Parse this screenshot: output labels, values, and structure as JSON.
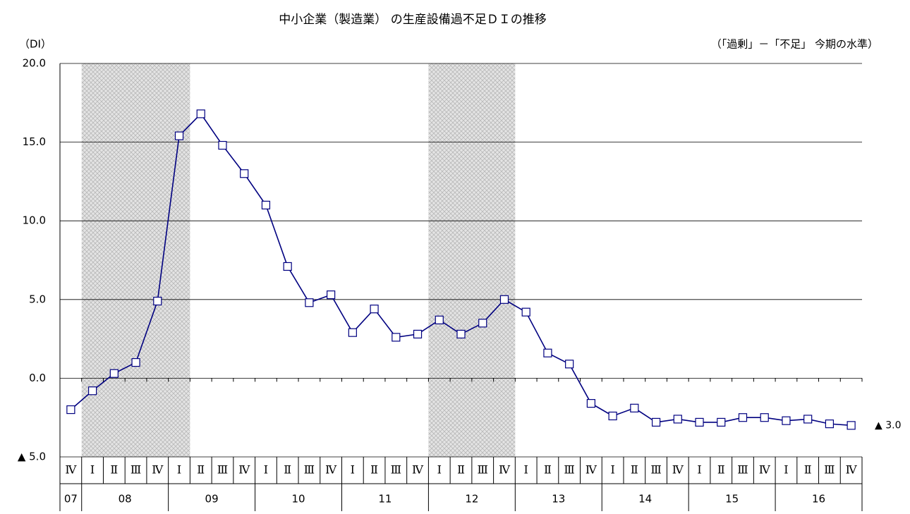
{
  "chart_data": {
    "type": "line",
    "title": "中小企業（製造業） の生産設備過不足ＤＩの推移",
    "y_label": "（DI）",
    "subtitle": "（「過剰」－「不足」 今期の水準）",
    "categories": [
      "Ⅳ",
      "Ⅰ",
      "Ⅱ",
      "Ⅲ",
      "Ⅳ",
      "Ⅰ",
      "Ⅱ",
      "Ⅲ",
      "Ⅳ",
      "Ⅰ",
      "Ⅱ",
      "Ⅲ",
      "Ⅳ",
      "Ⅰ",
      "Ⅱ",
      "Ⅲ",
      "Ⅳ",
      "Ⅰ",
      "Ⅱ",
      "Ⅲ",
      "Ⅳ",
      "Ⅰ",
      "Ⅱ",
      "Ⅲ",
      "Ⅳ",
      "Ⅰ",
      "Ⅱ",
      "Ⅲ",
      "Ⅳ",
      "Ⅰ",
      "Ⅱ",
      "Ⅲ",
      "Ⅳ",
      "Ⅰ",
      "Ⅱ",
      "Ⅲ",
      "Ⅳ"
    ],
    "years": [
      {
        "label": "07",
        "quarters": 1
      },
      {
        "label": "08",
        "quarters": 4
      },
      {
        "label": "09",
        "quarters": 4
      },
      {
        "label": "10",
        "quarters": 4
      },
      {
        "label": "11",
        "quarters": 4
      },
      {
        "label": "12",
        "quarters": 4
      },
      {
        "label": "13",
        "quarters": 4
      },
      {
        "label": "14",
        "quarters": 4
      },
      {
        "label": "15",
        "quarters": 4
      },
      {
        "label": "16",
        "quarters": 4
      }
    ],
    "values": [
      -2.0,
      -0.8,
      0.3,
      1.0,
      4.9,
      15.4,
      16.8,
      14.8,
      13.0,
      11.0,
      7.1,
      4.8,
      5.3,
      2.9,
      4.4,
      2.6,
      2.8,
      3.7,
      2.8,
      3.5,
      5.0,
      4.2,
      1.6,
      0.9,
      -1.6,
      -2.4,
      -1.9,
      -2.8,
      -2.6,
      -2.8,
      -2.8,
      -2.5,
      -2.5,
      -2.7,
      -2.6,
      -2.9,
      -3.0
    ],
    "value_labels": [
      null,
      null,
      null,
      null,
      null,
      null,
      null,
      null,
      null,
      null,
      null,
      null,
      null,
      null,
      null,
      null,
      null,
      null,
      null,
      null,
      null,
      null,
      null,
      null,
      null,
      null,
      null,
      null,
      null,
      null,
      null,
      null,
      null,
      null,
      null,
      null,
      "▲ 3.0"
    ],
    "color": "#000080",
    "shaded_ranges": [
      {
        "from": 1,
        "to": 5
      },
      {
        "from": 17,
        "to": 20
      }
    ],
    "ylim": [
      -5,
      20
    ],
    "yticks": [
      {
        "value": 20,
        "label": "20.0"
      },
      {
        "value": 15,
        "label": "15.0"
      },
      {
        "value": 10,
        "label": "10.0"
      },
      {
        "value": 5,
        "label": "5.0"
      },
      {
        "value": 0,
        "label": "0.0"
      },
      {
        "value": -5,
        "label": "▲ 5.0"
      }
    ],
    "grid": true
  }
}
